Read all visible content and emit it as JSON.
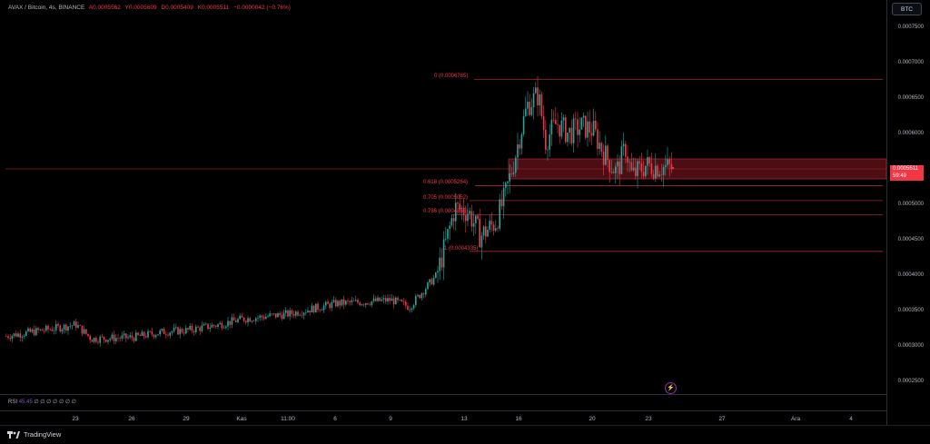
{
  "legend": {
    "symbol": "AVAX / Bitcoin, 4s, BINANCE",
    "open": "A0.0005562",
    "high": "Y0.0005609",
    "low": "D0.0005409",
    "close": "K0.0005511",
    "change": "−0.0000042 (−0.76%)"
  },
  "currency_button": "BTC",
  "current_price": {
    "value": "0.0005511",
    "countdown": "59:49"
  },
  "y_ticks": [
    "0.0007500",
    "0.0007000",
    "0.0006500",
    "0.0006000",
    "0.0005500",
    "0.0005000",
    "0.0004500",
    "0.0004000",
    "0.0003500",
    "0.0003000",
    "0.0002500"
  ],
  "x_ticks": [
    "23",
    "26",
    "29",
    "Kas",
    "11:00",
    "6",
    "9",
    "13",
    "16",
    "20",
    "23",
    "27",
    "Ara",
    "4"
  ],
  "fib_levels": [
    {
      "label": "0 (0.0006765)",
      "price": 0.0006765
    },
    {
      "label": "0.618 (0.0005264)",
      "price": 0.0005264
    },
    {
      "label": "0.705 (0.0005052)",
      "price": 0.0005052
    },
    {
      "label": "0.786 (0.0004855)",
      "price": 0.0004855
    },
    {
      "label": "1 (0.0004335)",
      "price": 0.0004335
    }
  ],
  "rsi": {
    "label": "RSI",
    "value": "45.45",
    "extras": "∅ ∅ ∅ ∅ ∅ ∅ ∅"
  },
  "footer": {
    "brand": "TradingView"
  },
  "colors": {
    "up": "#26a69a",
    "down": "#f23645",
    "zone": "#8b1a22",
    "bg": "#000000"
  },
  "chart_data": {
    "type": "candlestick",
    "symbol": "AVAX / Bitcoin",
    "timeframe": "4s",
    "exchange": "BINANCE",
    "ylim": [
      0.00023,
      0.00078
    ],
    "key_points": [
      {
        "x": "23",
        "close": 0.000315
      },
      {
        "x": "26",
        "close": 0.00031
      },
      {
        "x": "29",
        "close": 0.000318
      },
      {
        "x": "Kas",
        "close": 0.00034
      },
      {
        "x": "11:00",
        "close": 0.000345
      },
      {
        "x": "6",
        "close": 0.00036
      },
      {
        "x": "9",
        "close": 0.000368
      },
      {
        "x": "13",
        "close": 0.00048
      },
      {
        "x": "16",
        "close": 0.0006
      },
      {
        "x": "20",
        "close": 0.000595
      },
      {
        "x": "23",
        "close": 0.000551
      }
    ],
    "high": 0.0006765,
    "low_swing": 0.0004335,
    "last": 0.0005511
  }
}
